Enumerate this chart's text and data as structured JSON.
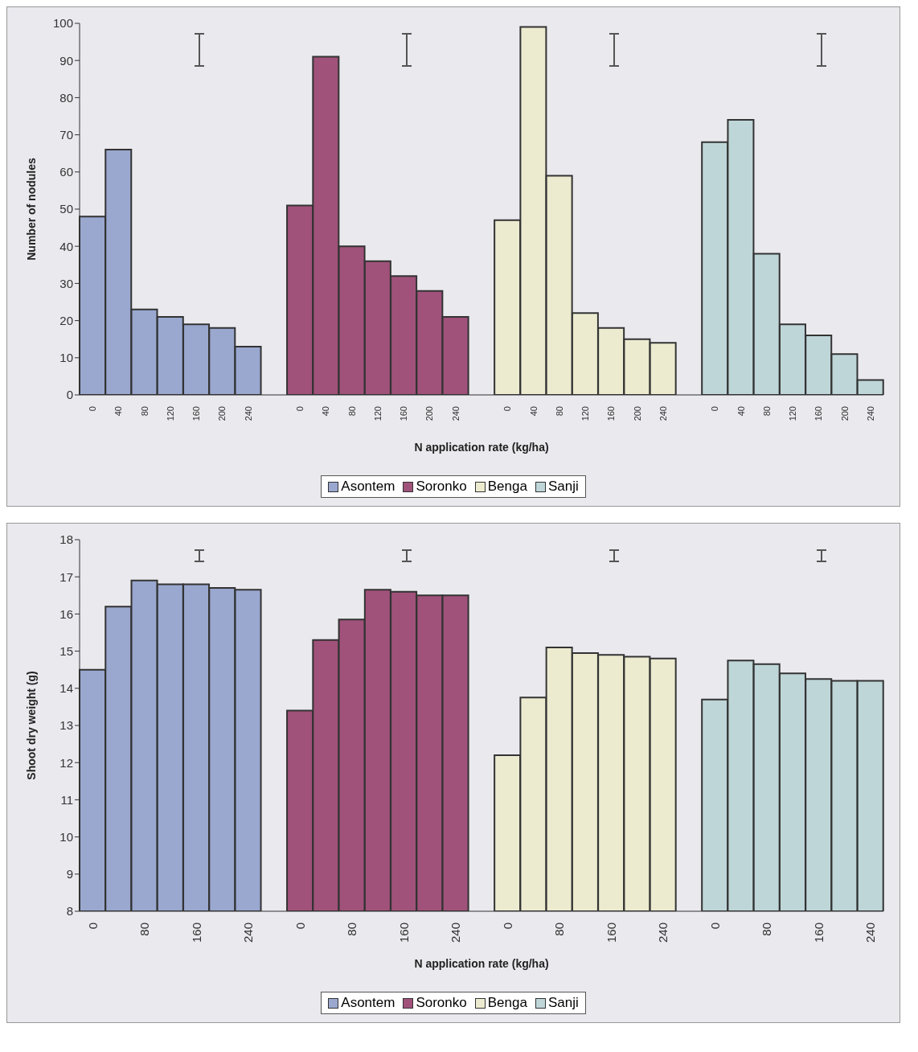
{
  "chart_data": [
    {
      "type": "bar",
      "stacked": true,
      "xlabel": "N application rate (kg/ha)",
      "ylabel": "Number of nodules",
      "categories": [
        "0",
        "40",
        "80",
        "120",
        "160",
        "200",
        "240",
        null,
        "0",
        "40",
        "80",
        "120",
        "160",
        "200",
        "240",
        null,
        "0",
        "40",
        "80",
        "120",
        "160",
        "200",
        "240",
        null,
        "0",
        "40",
        "80",
        "120",
        "160",
        "200",
        "240"
      ],
      "series": [
        {
          "name": "Asontem",
          "color": "#9aa8cf",
          "values": [
            48,
            66,
            23,
            21,
            19,
            18,
            13,
            null,
            null,
            null,
            null,
            null,
            null,
            null,
            null,
            null,
            null,
            null,
            null,
            null,
            null,
            null,
            null,
            null,
            null,
            null,
            null,
            null,
            null,
            null,
            null
          ]
        },
        {
          "name": "Soronko",
          "color": "#a0527a",
          "values": [
            null,
            null,
            null,
            null,
            null,
            null,
            null,
            null,
            51,
            91,
            40,
            36,
            32,
            28,
            21,
            null,
            null,
            null,
            null,
            null,
            null,
            null,
            null,
            null,
            null,
            null,
            null,
            null,
            null,
            null,
            null
          ]
        },
        {
          "name": "Benga",
          "color": "#ecebd0",
          "values": [
            null,
            null,
            null,
            null,
            null,
            null,
            null,
            null,
            null,
            null,
            null,
            null,
            null,
            null,
            null,
            null,
            47,
            99,
            59,
            22,
            18,
            15,
            14,
            null,
            null,
            null,
            null,
            null,
            null,
            null,
            null
          ]
        },
        {
          "name": "Sanji",
          "color": "#bfd6d9",
          "values": [
            null,
            null,
            null,
            null,
            null,
            null,
            null,
            null,
            null,
            null,
            null,
            null,
            null,
            null,
            null,
            null,
            null,
            null,
            null,
            null,
            null,
            null,
            null,
            null,
            68,
            74,
            38,
            19,
            16,
            11,
            4
          ]
        }
      ],
      "ylim": [
        0,
        100
      ],
      "yticks": [
        0,
        10,
        20,
        30,
        40,
        50,
        60,
        70,
        80,
        90,
        100
      ],
      "grid": false,
      "legend": "bottom"
    },
    {
      "type": "bar",
      "stacked": true,
      "xlabel": "N application rate (kg/ha)",
      "ylabel": "Shoot dry weight (g)",
      "categories": [
        "0",
        null,
        "80",
        null,
        "160",
        null,
        "240",
        null,
        "0",
        null,
        "80",
        null,
        "160",
        null,
        "240",
        null,
        "0",
        null,
        "80",
        null,
        "160",
        null,
        "240",
        null,
        "0",
        null,
        "80",
        null,
        "160",
        null,
        "240"
      ],
      "series": [
        {
          "name": "Asontem",
          "color": "#9aa8cf",
          "values": [
            14.5,
            16.2,
            16.9,
            16.8,
            16.8,
            16.7,
            16.65,
            null,
            null,
            null,
            null,
            null,
            null,
            null,
            null,
            null,
            null,
            null,
            null,
            null,
            null,
            null,
            null,
            null,
            null,
            null,
            null,
            null,
            null,
            null,
            null
          ]
        },
        {
          "name": "Soronko",
          "color": "#a0527a",
          "values": [
            null,
            null,
            null,
            null,
            null,
            null,
            null,
            null,
            13.4,
            15.3,
            15.85,
            16.65,
            16.6,
            16.5,
            16.5,
            null,
            null,
            null,
            null,
            null,
            null,
            null,
            null,
            null,
            null,
            null,
            null,
            null,
            null,
            null,
            null
          ]
        },
        {
          "name": "Benga",
          "color": "#ecebd0",
          "values": [
            null,
            null,
            null,
            null,
            null,
            null,
            null,
            null,
            null,
            null,
            null,
            null,
            null,
            null,
            null,
            null,
            12.2,
            13.75,
            15.1,
            14.95,
            14.9,
            14.85,
            14.8,
            null,
            null,
            null,
            null,
            null,
            null,
            null,
            null
          ]
        },
        {
          "name": "Sanji",
          "color": "#bfd6d9",
          "values": [
            null,
            null,
            null,
            null,
            null,
            null,
            null,
            null,
            null,
            null,
            null,
            null,
            null,
            null,
            null,
            null,
            null,
            null,
            null,
            null,
            null,
            null,
            null,
            null,
            13.7,
            14.75,
            14.65,
            14.4,
            14.25,
            14.2,
            14.2
          ]
        }
      ],
      "ylim": [
        8,
        18
      ],
      "yticks": [
        8,
        9,
        10,
        11,
        12,
        13,
        14,
        15,
        16,
        17,
        18
      ],
      "grid": false,
      "legend": "bottom"
    }
  ]
}
